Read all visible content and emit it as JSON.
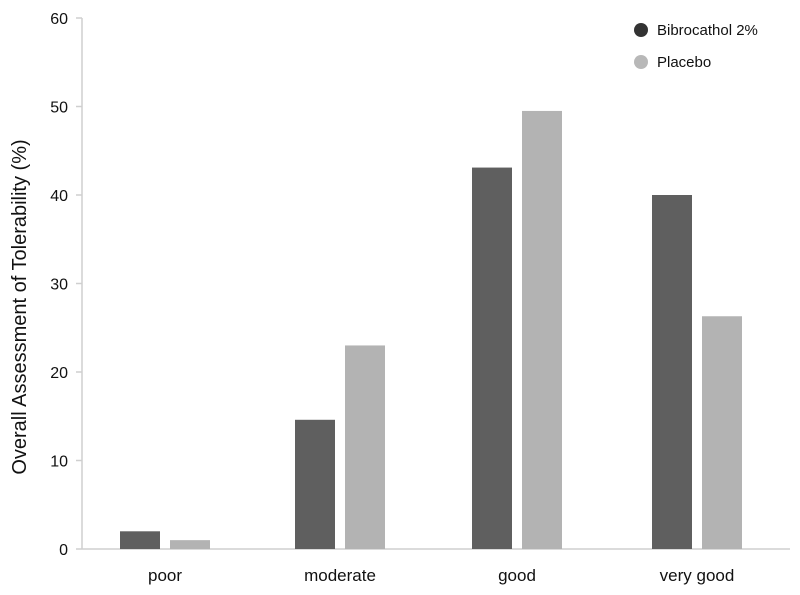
{
  "chart_data": {
    "type": "bar",
    "title": "",
    "xlabel": "",
    "ylabel": "Overall Assessment  of Tolerability (%)",
    "ylim": [
      0,
      60
    ],
    "yticks": [
      0,
      10,
      20,
      30,
      40,
      50,
      60
    ],
    "categories": [
      "poor",
      "moderate",
      "good",
      "very good"
    ],
    "series": [
      {
        "name": "Bibrocathol 2%",
        "color": "#5f5f5f",
        "values": [
          2.0,
          14.6,
          43.1,
          40.0
        ]
      },
      {
        "name": "Placebo",
        "color": "#b3b3b3",
        "values": [
          1.0,
          23.0,
          49.5,
          26.3
        ]
      }
    ],
    "legend": "top-right",
    "legend_marker_colors": [
      "#333333",
      "#b8b8b8"
    ],
    "grid": false
  }
}
